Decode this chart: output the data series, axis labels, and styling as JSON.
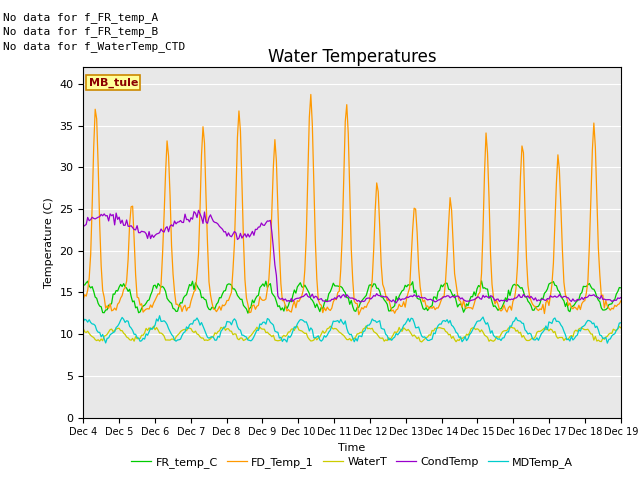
{
  "title": "Water Temperatures",
  "xlabel": "Time",
  "ylabel": "Temperature (C)",
  "ylim": [
    0,
    42
  ],
  "yticks": [
    0,
    5,
    10,
    15,
    20,
    25,
    30,
    35,
    40
  ],
  "bg_color": "#e8e8e8",
  "fig_color": "#ffffff",
  "annotations": [
    "No data for f_FR_temp_A",
    "No data for f_FR_temp_B",
    "No data for f_WaterTemp_CTD"
  ],
  "mb_tule_label": "MB_tule",
  "series": {
    "FR_temp_C": {
      "color": "#00cc00",
      "label": "FR_temp_C"
    },
    "FD_Temp_1": {
      "color": "#ff9900",
      "label": "FD_Temp_1"
    },
    "WaterT": {
      "color": "#cccc00",
      "label": "WaterT"
    },
    "CondTemp": {
      "color": "#9900cc",
      "label": "CondTemp"
    },
    "MDTemp_A": {
      "color": "#00cccc",
      "label": "MDTemp_A"
    }
  },
  "xtick_labels": [
    "Dec 4",
    "Dec 5",
    "Dec 6",
    "Dec 7",
    "Dec 8",
    "Dec 9",
    "Dec 10",
    "Dec 11",
    "Dec 12",
    "Dec 13",
    "Dec 14",
    "Dec 15",
    "Dec 16",
    "Dec 17",
    "Dec 18",
    "Dec 19"
  ],
  "title_fontsize": 12,
  "axis_fontsize": 8,
  "legend_fontsize": 8,
  "annot_fontsize": 8
}
